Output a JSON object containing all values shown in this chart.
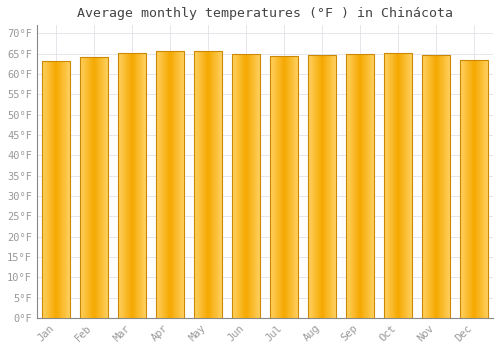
{
  "title": "Average monthly temperatures (°F ) in Chinácota",
  "months": [
    "Jan",
    "Feb",
    "Mar",
    "Apr",
    "May",
    "Jun",
    "Jul",
    "Aug",
    "Sep",
    "Oct",
    "Nov",
    "Dec"
  ],
  "values": [
    63.3,
    64.2,
    65.1,
    65.7,
    65.7,
    65.0,
    64.5,
    64.8,
    65.0,
    65.2,
    64.6,
    63.5
  ],
  "bar_color_center": "#F5A800",
  "bar_color_edge": "#FFD060",
  "bar_border_color": "#CC8800",
  "yticks": [
    0,
    5,
    10,
    15,
    20,
    25,
    30,
    35,
    40,
    45,
    50,
    55,
    60,
    65,
    70
  ],
  "ytick_labels": [
    "0°F",
    "5°F",
    "10°F",
    "15°F",
    "20°F",
    "25°F",
    "30°F",
    "35°F",
    "40°F",
    "45°F",
    "50°F",
    "55°F",
    "60°F",
    "65°F",
    "70°F"
  ],
  "ylim": [
    0,
    72
  ],
  "background_color": "#FFFFFF",
  "grid_color": "#E0E0E8",
  "title_fontsize": 9.5,
  "tick_fontsize": 7.5,
  "tick_color": "#999999",
  "bar_width": 0.72
}
